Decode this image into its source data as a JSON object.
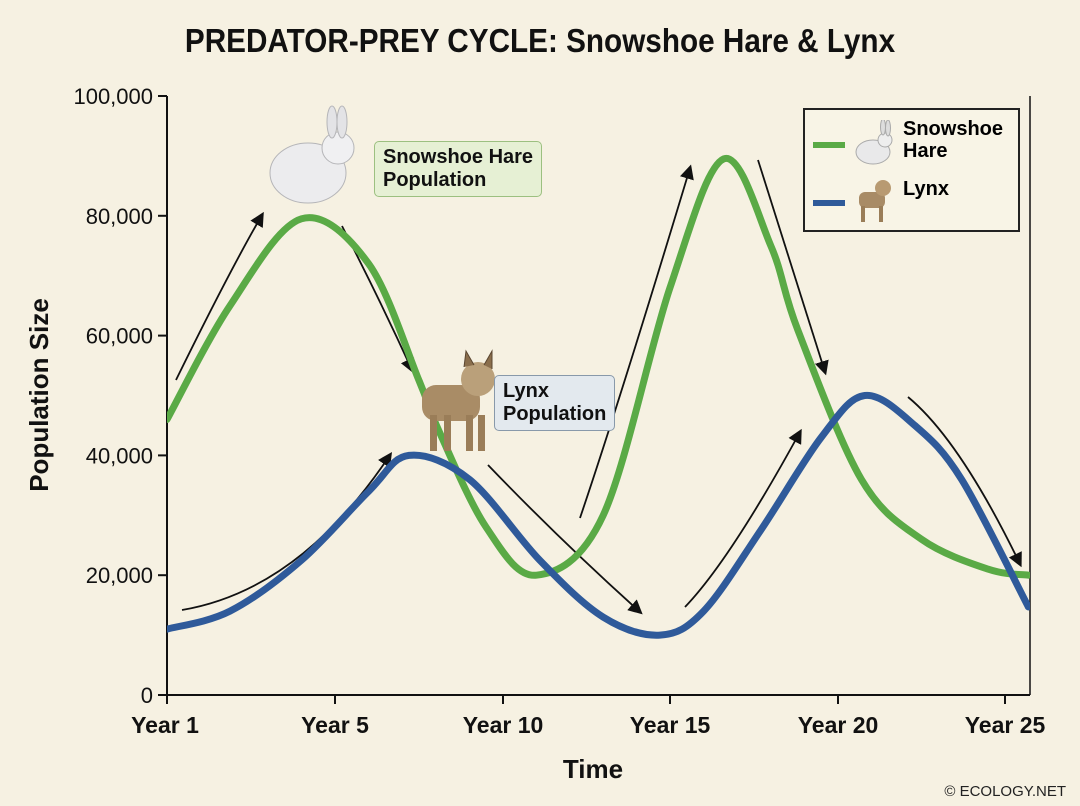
{
  "chart_data": {
    "type": "line",
    "title": "PREDATOR-PREY CYCLE: Snowshoe Hare & Lynx",
    "xlabel": "Time",
    "ylabel": "Population Size",
    "x_ticks": [
      1,
      5,
      10,
      15,
      20,
      25
    ],
    "x_tick_labels": [
      "Year 1",
      "Year 5",
      "Year 10",
      "Year 15",
      "Year 20",
      "Year 25"
    ],
    "y_ticks": [
      0,
      20000,
      40000,
      60000,
      80000,
      100000
    ],
    "y_tick_labels": [
      "0",
      "20,000",
      "40,000",
      "60,000",
      "80,000",
      "100,000"
    ],
    "ylim": [
      0,
      100000
    ],
    "grid": false,
    "legend_position": "top-right",
    "series": [
      {
        "name": "Snowshoe Hare",
        "color": "#5aaa46",
        "x": [
          1,
          2.5,
          4.2,
          6,
          7.5,
          8.1,
          9.5,
          11,
          13,
          15,
          16.6,
          18,
          18.8,
          20.7,
          22.5,
          24.5,
          25.7
        ],
        "y": [
          46000,
          65000,
          79500,
          72000,
          52500,
          44000,
          28000,
          20000,
          30000,
          68000,
          89500,
          75000,
          61000,
          36000,
          26000,
          21000,
          20000
        ]
      },
      {
        "name": "Lynx",
        "color": "#2f5a9a",
        "x": [
          1,
          2.5,
          4.2,
          6,
          7.2,
          9,
          11.1,
          13,
          14.7,
          16,
          17.7,
          19.5,
          20.8,
          22.3,
          23.7,
          25.7
        ],
        "y": [
          11000,
          14000,
          22500,
          34000,
          40000,
          36000,
          22500,
          13000,
          10000,
          14000,
          27500,
          43000,
          50000,
          45000,
          36000,
          14700
        ]
      }
    ],
    "annotations": [
      "Snowshoe Hare Population",
      "Lynx Population"
    ]
  },
  "callouts": {
    "hare": [
      "Snowshoe Hare",
      "Population"
    ],
    "lynx": [
      "Lynx",
      "Population"
    ]
  },
  "legend": {
    "hare": [
      "Snowshoe",
      "Hare"
    ],
    "lynx": "Lynx"
  },
  "copyright": "© ECOLOGY.NET"
}
